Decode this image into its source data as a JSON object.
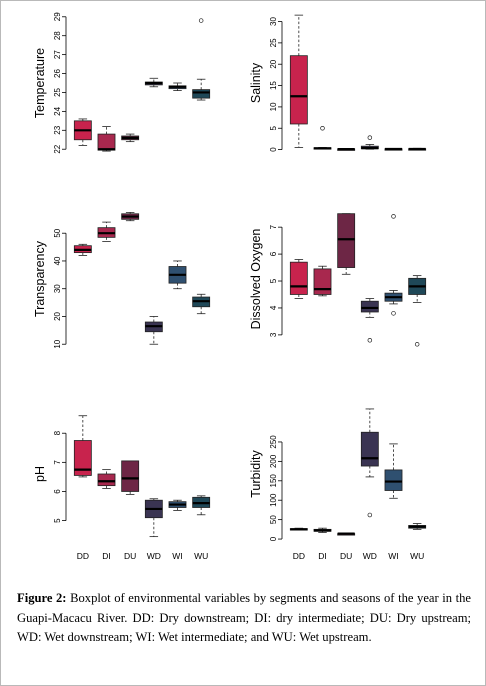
{
  "caption": {
    "label": "Figure 2:",
    "text": "Boxplot of environmental variables by segments and seasons of the year in the Guapi-Macacu River. DD: Dry downstream; DI: dry intermediate; DU: Dry upstream; WD: Wet downstream; WI: Wet intermediate; and WU: Wet upstream."
  },
  "chart_data": [
    {
      "type": "boxplot",
      "ylabel": "Temperature",
      "ylim": [
        21.8,
        29.2
      ],
      "yticks": [
        22,
        23,
        24,
        25,
        26,
        27,
        28,
        29
      ],
      "categories": [
        "DD",
        "DI",
        "DU",
        "WD",
        "WI",
        "WU"
      ],
      "colors": [
        "#c8234d",
        "#a8284e",
        "#6d2645",
        "#3a3452",
        "#2f5070",
        "#1f4858"
      ],
      "boxes": [
        {
          "min": 22.2,
          "q1": 22.5,
          "median": 23.0,
          "q3": 23.5,
          "max": 23.6,
          "outliers": []
        },
        {
          "min": 21.9,
          "q1": 21.95,
          "median": 22.0,
          "q3": 22.8,
          "max": 23.2,
          "outliers": []
        },
        {
          "min": 22.4,
          "q1": 22.5,
          "median": 22.6,
          "q3": 22.7,
          "max": 22.8,
          "outliers": []
        },
        {
          "min": 25.3,
          "q1": 25.4,
          "median": 25.5,
          "q3": 25.55,
          "max": 25.75,
          "outliers": []
        },
        {
          "min": 25.1,
          "q1": 25.2,
          "median": 25.3,
          "q3": 25.35,
          "max": 25.5,
          "outliers": []
        },
        {
          "min": 24.6,
          "q1": 24.7,
          "median": 25.0,
          "q3": 25.15,
          "max": 25.7,
          "outliers": [
            28.8
          ]
        }
      ]
    },
    {
      "type": "boxplot",
      "ylabel": "Salinity",
      "ylim": [
        -0.8,
        32
      ],
      "yticks": [
        0,
        5,
        10,
        15,
        20,
        25,
        30
      ],
      "categories": [
        "DD",
        "DI",
        "DU",
        "WD",
        "WI",
        "WU"
      ],
      "colors": [
        "#c8234d",
        "#a8284e",
        "#6d2645",
        "#3a3452",
        "#2f5070",
        "#1f4858"
      ],
      "boxes": [
        {
          "min": 0.5,
          "q1": 6.0,
          "median": 12.5,
          "q3": 22.0,
          "max": 31.5,
          "outliers": []
        },
        {
          "min": 0.2,
          "q1": 0.25,
          "median": 0.3,
          "q3": 0.45,
          "max": 0.5,
          "outliers": [
            5.0
          ]
        },
        {
          "min": 0.05,
          "q1": 0.1,
          "median": 0.12,
          "q3": 0.15,
          "max": 0.2,
          "outliers": []
        },
        {
          "min": 0.1,
          "q1": 0.2,
          "median": 0.35,
          "q3": 0.8,
          "max": 1.2,
          "outliers": [
            2.8
          ]
        },
        {
          "min": 0.1,
          "q1": 0.12,
          "median": 0.15,
          "q3": 0.2,
          "max": 0.25,
          "outliers": []
        },
        {
          "min": 0.1,
          "q1": 0.12,
          "median": 0.15,
          "q3": 0.2,
          "max": 0.3,
          "outliers": []
        }
      ]
    },
    {
      "type": "boxplot",
      "ylabel": "Transparency",
      "ylim": [
        9,
        58
      ],
      "yticks": [
        10,
        20,
        30,
        40,
        50
      ],
      "categories": [
        "DD",
        "DI",
        "DU",
        "WD",
        "WI",
        "WU"
      ],
      "colors": [
        "#c8234d",
        "#a8284e",
        "#6d2645",
        "#3a3452",
        "#2f5070",
        "#1f4858"
      ],
      "boxes": [
        {
          "min": 42.0,
          "q1": 43.0,
          "median": 44.0,
          "q3": 45.5,
          "max": 46.0,
          "outliers": []
        },
        {
          "min": 47.0,
          "q1": 48.5,
          "median": 50.0,
          "q3": 52.0,
          "max": 54.0,
          "outliers": []
        },
        {
          "min": 54.5,
          "q1": 55.0,
          "median": 56.0,
          "q3": 57.0,
          "max": 57.5,
          "outliers": []
        },
        {
          "min": 10.0,
          "q1": 14.5,
          "median": 16.5,
          "q3": 18.0,
          "max": 20.0,
          "outliers": []
        },
        {
          "min": 30.0,
          "q1": 32.0,
          "median": 35.0,
          "q3": 38.0,
          "max": 40.0,
          "outliers": []
        },
        {
          "min": 21.0,
          "q1": 23.5,
          "median": 25.5,
          "q3": 27.0,
          "max": 28.0,
          "outliers": []
        }
      ]
    },
    {
      "type": "boxplot",
      "ylabel": "Dissolved Oxygen",
      "ylim": [
        2.55,
        7.6
      ],
      "yticks": [
        3,
        4,
        5,
        6,
        7
      ],
      "categories": [
        "DD",
        "DI",
        "DU",
        "WD",
        "WI",
        "WU"
      ],
      "colors": [
        "#c8234d",
        "#a8284e",
        "#6d2645",
        "#3a3452",
        "#2f5070",
        "#1f4858"
      ],
      "boxes": [
        {
          "min": 4.35,
          "q1": 4.5,
          "median": 4.8,
          "q3": 5.7,
          "max": 5.8,
          "outliers": []
        },
        {
          "min": 4.45,
          "q1": 4.5,
          "median": 4.7,
          "q3": 5.45,
          "max": 5.55,
          "outliers": []
        },
        {
          "min": 5.25,
          "q1": 5.5,
          "median": 6.55,
          "q3": 7.5,
          "max": 7.5,
          "outliers": []
        },
        {
          "min": 3.65,
          "q1": 3.85,
          "median": 4.0,
          "q3": 4.25,
          "max": 4.35,
          "outliers": [
            2.8
          ]
        },
        {
          "min": 4.15,
          "q1": 4.25,
          "median": 4.4,
          "q3": 4.55,
          "max": 4.65,
          "outliers": [
            3.8,
            7.4
          ]
        },
        {
          "min": 4.2,
          "q1": 4.5,
          "median": 4.8,
          "q3": 5.1,
          "max": 5.2,
          "outliers": [
            2.65
          ]
        }
      ]
    },
    {
      "type": "boxplot",
      "ylabel": "pH",
      "ylim": [
        4.3,
        8.9
      ],
      "yticks": [
        5,
        6,
        7,
        8
      ],
      "categories": [
        "DD",
        "DI",
        "DU",
        "WD",
        "WI",
        "WU"
      ],
      "colors": [
        "#c8234d",
        "#a8284e",
        "#6d2645",
        "#3a3452",
        "#2f5070",
        "#1f4858"
      ],
      "boxes": [
        {
          "min": 6.5,
          "q1": 6.55,
          "median": 6.75,
          "q3": 7.75,
          "max": 8.6,
          "outliers": []
        },
        {
          "min": 6.1,
          "q1": 6.2,
          "median": 6.35,
          "q3": 6.6,
          "max": 6.75,
          "outliers": []
        },
        {
          "min": 5.9,
          "q1": 6.0,
          "median": 6.45,
          "q3": 7.05,
          "max": 7.05,
          "outliers": []
        },
        {
          "min": 4.45,
          "q1": 5.1,
          "median": 5.4,
          "q3": 5.7,
          "max": 5.75,
          "outliers": []
        },
        {
          "min": 5.35,
          "q1": 5.45,
          "median": 5.55,
          "q3": 5.65,
          "max": 5.7,
          "outliers": []
        },
        {
          "min": 5.2,
          "q1": 5.45,
          "median": 5.6,
          "q3": 5.8,
          "max": 5.85,
          "outliers": []
        }
      ]
    },
    {
      "type": "boxplot",
      "ylabel": "Turbidity",
      "ylim": [
        -5,
        340
      ],
      "yticks": [
        0,
        50,
        100,
        150,
        200,
        250
      ],
      "categories": [
        "DD",
        "DI",
        "DU",
        "WD",
        "WI",
        "WU"
      ],
      "colors": [
        "#c8234d",
        "#a8284e",
        "#6d2645",
        "#3a3452",
        "#2f5070",
        "#1f4858"
      ],
      "boxes": [
        {
          "min": 24,
          "q1": 24,
          "median": 25,
          "q3": 27,
          "max": 28,
          "outliers": []
        },
        {
          "min": 17,
          "q1": 20,
          "median": 22,
          "q3": 25,
          "max": 28,
          "outliers": []
        },
        {
          "min": 12,
          "q1": 13,
          "median": 14,
          "q3": 14,
          "max": 15,
          "outliers": []
        },
        {
          "min": 160,
          "q1": 188,
          "median": 208,
          "q3": 275,
          "max": 335,
          "outliers": [
            62
          ]
        },
        {
          "min": 105,
          "q1": 125,
          "median": 148,
          "q3": 178,
          "max": 245,
          "outliers": []
        },
        {
          "min": 25,
          "q1": 28,
          "median": 32,
          "q3": 35,
          "max": 40,
          "outliers": []
        }
      ]
    }
  ]
}
